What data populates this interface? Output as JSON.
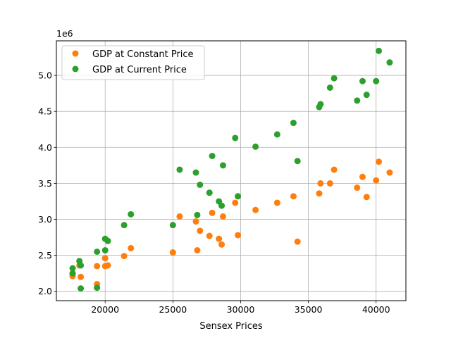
{
  "chart_data": {
    "type": "scatter",
    "xlabel": "Sensex Prices",
    "ylabel": "",
    "y_scale_label": "1e6",
    "xlim": [
      16400,
      42200
    ],
    "ylim": [
      1870000,
      5480000
    ],
    "x_ticks": [
      20000,
      25000,
      30000,
      35000,
      40000
    ],
    "x_tick_labels": [
      "20000",
      "25000",
      "30000",
      "35000",
      "40000"
    ],
    "y_ticks": [
      2000000,
      2500000,
      3000000,
      3500000,
      4000000,
      4500000,
      5000000
    ],
    "y_tick_labels": [
      "2.0",
      "2.5",
      "3.0",
      "3.5",
      "4.0",
      "4.5",
      "5.0"
    ],
    "grid": true,
    "legend_position": "top-left",
    "series": [
      {
        "name": "GDP at Constant Price",
        "color": "#ff7f0e",
        "points": [
          [
            17600,
            2210000
          ],
          [
            17600,
            2240000
          ],
          [
            18100,
            2360000
          ],
          [
            18200,
            2200000
          ],
          [
            19400,
            2100000
          ],
          [
            19400,
            2350000
          ],
          [
            20000,
            2460000
          ],
          [
            20000,
            2350000
          ],
          [
            20200,
            2360000
          ],
          [
            21400,
            2490000
          ],
          [
            21900,
            2600000
          ],
          [
            25000,
            2540000
          ],
          [
            25500,
            3040000
          ],
          [
            26700,
            2970000
          ],
          [
            26800,
            2570000
          ],
          [
            27000,
            2840000
          ],
          [
            27700,
            2770000
          ],
          [
            27900,
            3090000
          ],
          [
            28400,
            2730000
          ],
          [
            28600,
            2650000
          ],
          [
            28700,
            3040000
          ],
          [
            29600,
            3230000
          ],
          [
            29800,
            2780000
          ],
          [
            31100,
            3130000
          ],
          [
            32700,
            3230000
          ],
          [
            33900,
            3320000
          ],
          [
            34200,
            2690000
          ],
          [
            35800,
            3360000
          ],
          [
            35900,
            3500000
          ],
          [
            36600,
            3500000
          ],
          [
            36900,
            3690000
          ],
          [
            38600,
            3440000
          ],
          [
            39000,
            3590000
          ],
          [
            39300,
            3310000
          ],
          [
            40000,
            3540000
          ],
          [
            40200,
            3800000
          ],
          [
            41000,
            3650000
          ]
        ]
      },
      {
        "name": "GDP at Current Price",
        "color": "#2ca02c",
        "points": [
          [
            17600,
            2250000
          ],
          [
            17600,
            2320000
          ],
          [
            18100,
            2420000
          ],
          [
            18200,
            2040000
          ],
          [
            18200,
            2360000
          ],
          [
            19400,
            2050000
          ],
          [
            19400,
            2550000
          ],
          [
            20000,
            2730000
          ],
          [
            20000,
            2570000
          ],
          [
            20200,
            2700000
          ],
          [
            21400,
            2920000
          ],
          [
            21900,
            3070000
          ],
          [
            25000,
            2920000
          ],
          [
            25500,
            3690000
          ],
          [
            26700,
            3650000
          ],
          [
            26800,
            3060000
          ],
          [
            27000,
            3480000
          ],
          [
            27700,
            3370000
          ],
          [
            27900,
            3880000
          ],
          [
            28400,
            3250000
          ],
          [
            28600,
            3190000
          ],
          [
            28700,
            3750000
          ],
          [
            29600,
            4130000
          ],
          [
            29800,
            3320000
          ],
          [
            31100,
            4010000
          ],
          [
            32700,
            4180000
          ],
          [
            33900,
            4340000
          ],
          [
            34200,
            3810000
          ],
          [
            35800,
            4560000
          ],
          [
            35900,
            4600000
          ],
          [
            36600,
            4830000
          ],
          [
            36900,
            4960000
          ],
          [
            38600,
            4650000
          ],
          [
            39000,
            4920000
          ],
          [
            39300,
            4730000
          ],
          [
            40000,
            4920000
          ],
          [
            40200,
            5340000
          ],
          [
            41000,
            5180000
          ]
        ]
      }
    ]
  }
}
